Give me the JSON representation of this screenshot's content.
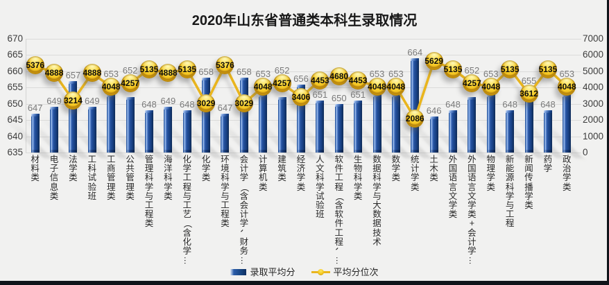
{
  "chart_data": {
    "type": "bar+line",
    "title": "2020年山东省普通类本科生录取情况",
    "categories": [
      "材料类",
      "电子信息类",
      "法学类",
      "工科试验班",
      "工商管理类",
      "公共管理类",
      "管理科学与工程类",
      "海洋科学类",
      "化学工程与工艺（含化学…",
      "化学类",
      "环境科学与工程类",
      "会计学（含会计学、财务…",
      "计算机类",
      "建筑类",
      "经济学类",
      "人文科学试验班",
      "软件工程（含软件工程、…",
      "生物科学类",
      "数据科学与大数据技术",
      "数学类",
      "统计学类",
      "土木类",
      "外国语言文学类",
      "外国语言文学类+会计学…",
      "物理学类",
      "新能源科学与工程",
      "新闻传播学类",
      "药学",
      "政治学类"
    ],
    "series": [
      {
        "name": "录取平均分",
        "type": "bar",
        "axis": "left",
        "values": [
          647,
          649,
          657,
          649,
          653,
          652,
          648,
          649,
          648,
          658,
          647,
          658,
          653,
          652,
          656,
          651,
          650,
          651,
          653,
          653,
          664,
          646,
          648,
          652,
          653,
          648,
          655,
          648,
          653
        ]
      },
      {
        "name": "平均分位次",
        "type": "line",
        "axis": "right",
        "values": [
          5376,
          4888,
          3214,
          4888,
          4048,
          4257,
          5135,
          4888,
          5135,
          3029,
          5376,
          3029,
          4048,
          4257,
          3406,
          4453,
          4680,
          4453,
          4048,
          4048,
          2086,
          5629,
          5135,
          4257,
          4048,
          5135,
          3612,
          5135,
          4048
        ]
      }
    ],
    "left_axis": {
      "min": 635,
      "max": 670,
      "step": 5,
      "ticks": [
        "635",
        "640",
        "645",
        "650",
        "655",
        "660",
        "665",
        "670"
      ]
    },
    "right_axis": {
      "min": 0,
      "max": 7000,
      "step": 1000,
      "ticks": [
        "0",
        "1000",
        "2000",
        "3000",
        "4000",
        "5000",
        "6000",
        "7000"
      ]
    },
    "legend": {
      "position": "bottom",
      "entries": [
        "录取平均分",
        "平均分位次"
      ]
    },
    "grid": "horizontal",
    "colors": {
      "background": "#f1f1f0",
      "gridline": "#dbdbda",
      "bar_fill": "#1f4e9c",
      "bar_highlight": "#8fb4e8",
      "line": "#e9b51e",
      "marker": "#f2c61f",
      "bar_value_label": "#7a7a7a",
      "marker_value_label": "#0c0c0c",
      "axis_text": "#3c3c3c",
      "title_text": "#191919",
      "frame_edge": "#10141a"
    }
  }
}
